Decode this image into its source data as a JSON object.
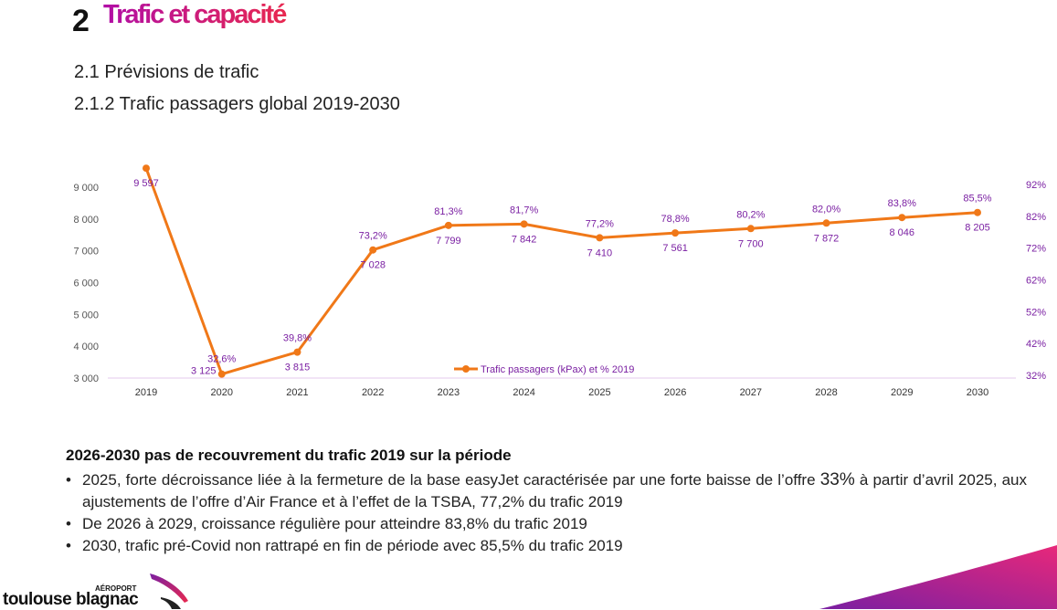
{
  "header": {
    "section_number": "2",
    "section_title": "Trafic et capacité",
    "subsection": "2.1 Prévisions de trafic",
    "subsubsection": "2.1.2 Trafic passagers global 2019-2030"
  },
  "colors": {
    "title_gradient_start": "#b10fa6",
    "title_gradient_end": "#e8284f",
    "line": "#f07818",
    "percent_text": "#7a1fa2",
    "axis_text": "#555555"
  },
  "chart_data": {
    "type": "line",
    "title": "",
    "x": [
      "2019",
      "2020",
      "2021",
      "2022",
      "2023",
      "2024",
      "2025",
      "2026",
      "2027",
      "2028",
      "2029",
      "2030"
    ],
    "series": [
      {
        "name": "Trafic passagers (kPax) et % 2019",
        "values": [
          9597,
          3125,
          3815,
          7028,
          7799,
          7842,
          7410,
          7561,
          7700,
          7872,
          8046,
          8205
        ],
        "value_labels": [
          "9 597",
          "3 125",
          "3 815",
          "7 028",
          "7 799",
          "7 842",
          "7 410",
          "7 561",
          "7 700",
          "7 872",
          "8 046",
          "8 205"
        ],
        "percent_labels": [
          "",
          "32,6%",
          "39,8%",
          "73,2%",
          "81,3%",
          "81,7%",
          "77,2%",
          "78,8%",
          "80,2%",
          "82,0%",
          "83,8%",
          "85,5%"
        ]
      }
    ],
    "ylim": [
      3000,
      9000
    ],
    "y_ticks": [
      3000,
      4000,
      5000,
      6000,
      7000,
      8000,
      9000
    ],
    "y_tick_labels": [
      "3 000",
      "4 000",
      "5 000",
      "6 000",
      "7 000",
      "8 000",
      "9 000"
    ],
    "y2_ticks": [
      32,
      42,
      52,
      62,
      72,
      82,
      92
    ],
    "y2_tick_labels": [
      "32%",
      "42%",
      "52%",
      "62%",
      "72%",
      "82%",
      "92%"
    ],
    "legend": "Trafic passagers (kPax) et % 2019",
    "legend_position": "bottom-center"
  },
  "summary": {
    "heading": "2026-2030 pas de recouvrement du trafic 2019 sur la période",
    "bullet1_a": "2025, forte décroissance liée à la fermeture de la base easyJet caractérisée par une forte baisse de l’offre ",
    "bullet1_num": "33%",
    "bullet1_b": " à partir d’avril 2025, aux ajustements de l’offre d’Air France et à l’effet de la TSBA, 77,2% du trafic 2019",
    "bullet2": "De 2026 à 2029, croissance régulière pour atteindre 83,8% du trafic 2019",
    "bullet3": "2030, trafic pré-Covid non rattrapé en fin de période avec 85,5% du trafic 2019"
  },
  "logo": {
    "brand": "toulouse blagnac",
    "small": "AÉROPORT"
  }
}
